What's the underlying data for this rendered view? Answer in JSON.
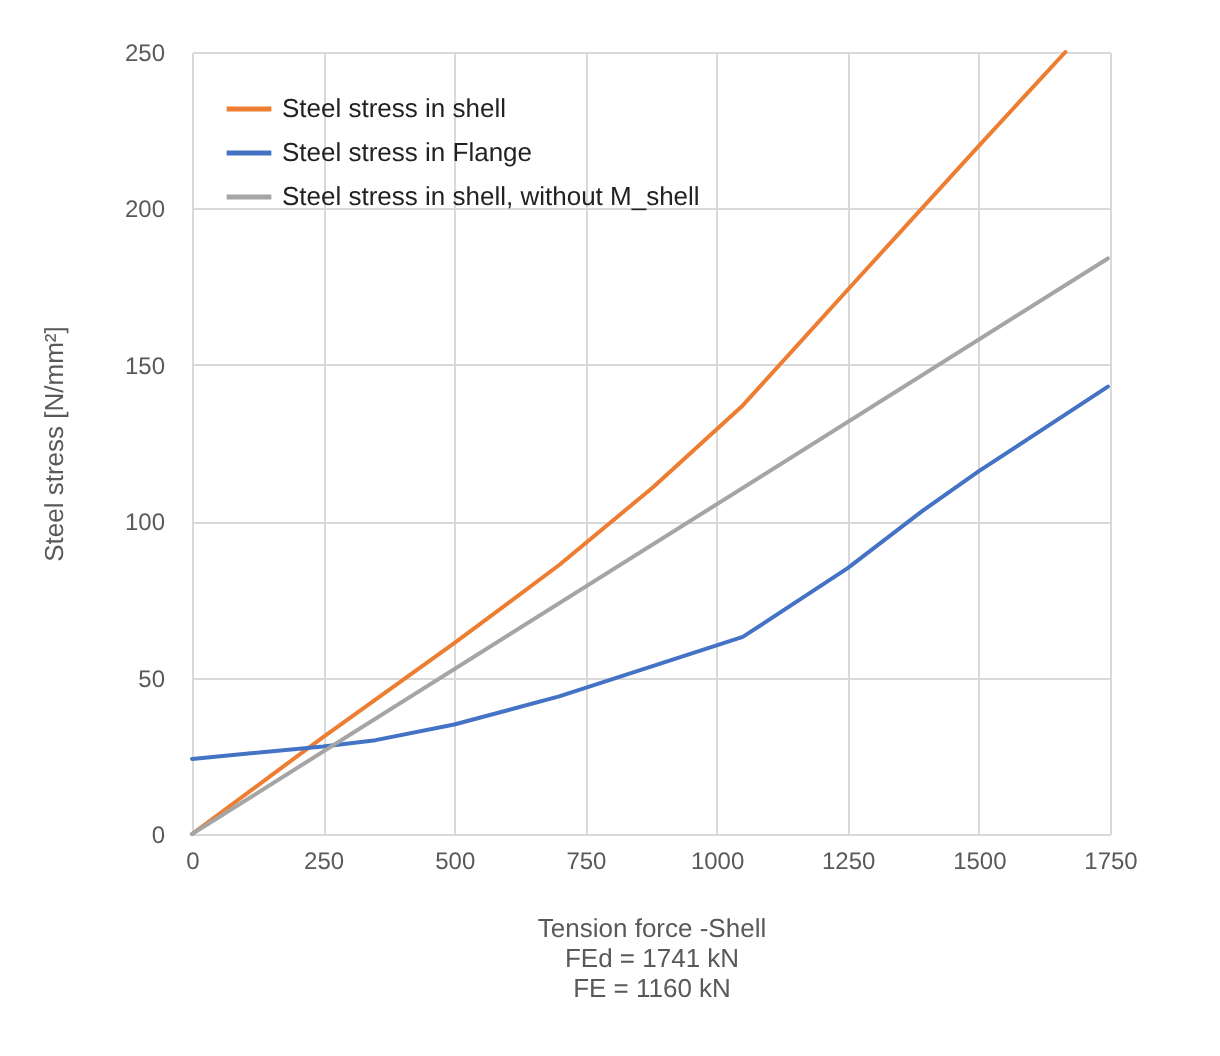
{
  "chart_data": {
    "type": "line",
    "xlabel": "Tension force -Shell\nFEd = 1741 kN\nFE = 1160 kN",
    "ylabel": "Steel stress [N/mm²]",
    "xlim": [
      0,
      1750
    ],
    "ylim": [
      0,
      250
    ],
    "xticks": [
      0,
      250,
      500,
      750,
      1000,
      1250,
      1500,
      1750
    ],
    "yticks": [
      0,
      50,
      100,
      150,
      200,
      250
    ],
    "grid": true,
    "legend": "top left",
    "marker": "none",
    "line_style": "solid",
    "series": [
      {
        "name": "Steel stress in shell",
        "color": "#ed7d31",
        "x": [
          0,
          250,
          500,
          700,
          880,
          1050,
          1250,
          1500,
          1665
        ],
        "values": [
          0,
          31,
          61,
          86,
          111,
          137,
          174,
          220,
          250
        ]
      },
      {
        "name": "Steel stress in Flange",
        "color": "#4472c4",
        "x": [
          0,
          250,
          350,
          500,
          700,
          1050,
          1250,
          1390,
          1500,
          1746
        ],
        "values": [
          24,
          28,
          30,
          35,
          44,
          63,
          85,
          103,
          116,
          143
        ]
      },
      {
        "name": "Steel stress in shell, without M_shell",
        "color": "#a5a5a5",
        "x": [
          0,
          1746
        ],
        "values": [
          0,
          184
        ]
      }
    ]
  }
}
